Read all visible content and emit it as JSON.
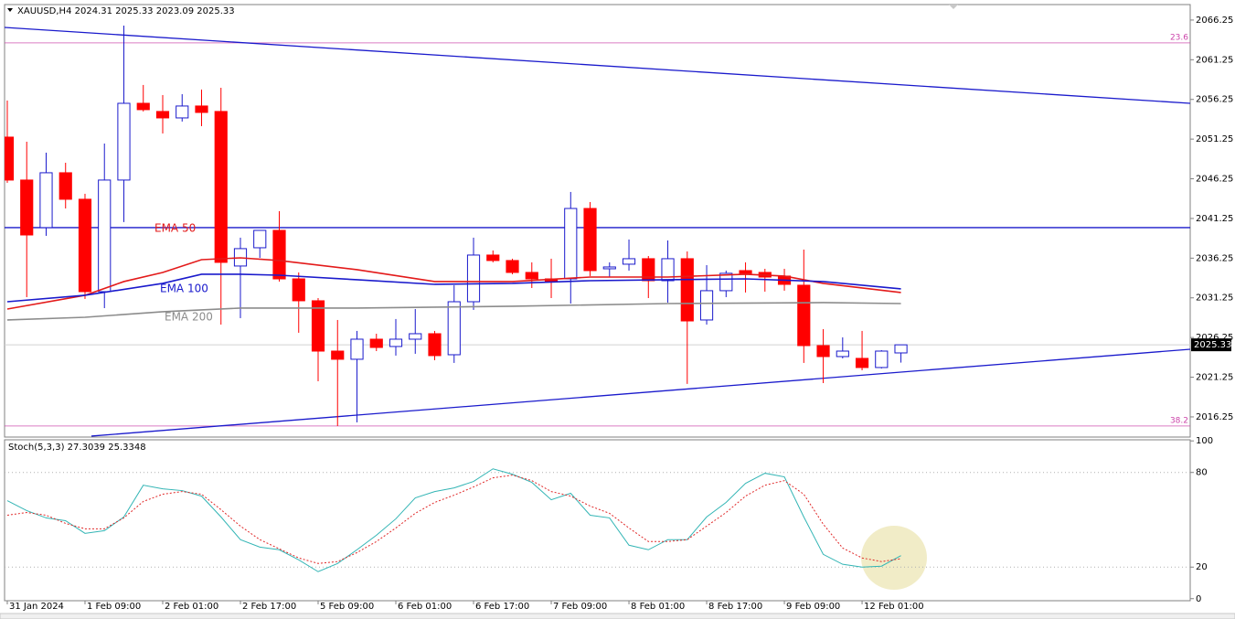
{
  "chart_data": [
    {
      "type": "candlestick",
      "title": "XAUUSD,H4",
      "open": [
        2051.5,
        2046.09,
        2040.1,
        2047.01,
        2043.67,
        2032.03,
        2046.09,
        2055.76,
        2054.73,
        2053.92,
        2055.42,
        2054.73,
        2035.26,
        2037.56,
        2039.75,
        2033.64,
        2030.88,
        2024.54,
        2023.51,
        2026.04,
        2025.12,
        2026.04,
        2026.73,
        2024.08,
        2030.76,
        2036.64,
        2035.95,
        2034.45,
        2033.64,
        2033.64,
        2042.51,
        2034.91,
        2035.49,
        2036.18,
        2033.41,
        2036.18,
        2028.46,
        2032.15,
        2034.68,
        2034.45,
        2033.99,
        2032.84,
        2025.23,
        2023.85,
        2023.62,
        2022.47,
        2024.31
      ],
      "high": [
        2056.11,
        2050.92,
        2049.54,
        2048.27,
        2044.36,
        2050.69,
        2065.55,
        2058.07,
        2056.8,
        2056.91,
        2057.49,
        2057.72,
        2038.83,
        2039.75,
        2042.17,
        2034.45,
        2031.22,
        2028.46,
        2027.08,
        2026.73,
        2028.58,
        2029.84,
        2027.08,
        2032.84,
        2038.83,
        2037.22,
        2036.18,
        2035.72,
        2036.18,
        2044.59,
        2043.32,
        2035.72,
        2038.6,
        2036.52,
        2038.48,
        2037.1,
        2035.37,
        2034.68,
        2035.72,
        2034.91,
        2034.91,
        2037.33,
        2027.31,
        2026.27,
        2027.08,
        2024.66,
        2025.33
      ],
      "low": [
        2045.74,
        2031.34,
        2039.06,
        2042.51,
        2031.11,
        2029.96,
        2040.79,
        2054.73,
        2051.96,
        2053.46,
        2052.88,
        2027.88,
        2028.69,
        2036.29,
        2033.3,
        2026.85,
        2020.74,
        2015.1,
        2015.56,
        2024.54,
        2023.97,
        2024.2,
        2023.39,
        2023.05,
        2029.73,
        2035.72,
        2034.22,
        2032.49,
        2031.22,
        2030.53,
        2033.99,
        2033.87,
        2034.68,
        2031.22,
        2030.65,
        2020.4,
        2027.88,
        2031.34,
        2031.92,
        2032.03,
        2032.15,
        2023.05,
        2020.51,
        2023.62,
        2022.12,
        2022.35,
        2023.09
      ],
      "close": [
        2046.09,
        2039.17,
        2047.01,
        2043.67,
        2032.03,
        2046.09,
        2055.76,
        2054.96,
        2053.92,
        2055.42,
        2054.61,
        2035.72,
        2037.45,
        2039.75,
        2033.64,
        2030.88,
        2024.54,
        2023.51,
        2026.04,
        2025.0,
        2026.04,
        2026.73,
        2023.97,
        2030.76,
        2036.64,
        2035.95,
        2034.45,
        2033.64,
        2033.3,
        2042.51,
        2034.68,
        2035.14,
        2036.18,
        2033.41,
        2036.18,
        2028.34,
        2032.15,
        2034.34,
        2034.34,
        2033.87,
        2032.95,
        2025.23,
        2023.85,
        2024.54,
        2022.47,
        2024.54,
        2025.33
      ],
      "up_color": "#ffffff",
      "up_edge_color": "#1a1acc",
      "down_color": "#ff0000",
      "xlim": [
        -0.14,
        60.89
      ],
      "ylim": [
        2013.71,
        2068.2
      ],
      "yticks": [
        2016.25,
        2021.25,
        2026.25,
        2031.25,
        2036.25,
        2041.25,
        2046.25,
        2051.25,
        2056.25,
        2061.25,
        2066.25
      ],
      "series": [
        {
          "name": "EMA 50",
          "color": "#e31a1a",
          "x": [
            0,
            4,
            6,
            8,
            10,
            12,
            14,
            18,
            22,
            26,
            30,
            34,
            38,
            40,
            42,
            46
          ],
          "values": [
            2029.84,
            2031.57,
            2033.3,
            2034.45,
            2036.06,
            2036.29,
            2035.95,
            2034.8,
            2033.3,
            2033.3,
            2033.87,
            2033.87,
            2034.22,
            2033.99,
            2033.07,
            2031.92
          ]
        },
        {
          "name": "EMA 100",
          "color": "#1a1acc",
          "x": [
            0,
            4,
            8,
            10,
            12,
            14,
            18,
            22,
            26,
            30,
            34,
            38,
            42,
            46
          ],
          "values": [
            2030.76,
            2031.57,
            2033.07,
            2034.22,
            2034.22,
            2034.1,
            2033.53,
            2032.95,
            2033.07,
            2033.41,
            2033.53,
            2033.64,
            2033.3,
            2032.38
          ]
        },
        {
          "name": "EMA 200",
          "color": "#8c8c8c",
          "x": [
            0,
            4,
            8,
            12,
            18,
            26,
            34,
            42,
            46
          ],
          "values": [
            2028.46,
            2028.8,
            2029.5,
            2029.96,
            2029.96,
            2030.19,
            2030.53,
            2030.65,
            2030.53
          ]
        }
      ],
      "horizontal_lines": [
        2040.1
      ],
      "line_color": "#1a1acc",
      "levels": [
        {
          "value": 2063.37,
          "label": "23.6"
        },
        {
          "value": 2015.1,
          "label": "38.2"
        }
      ],
      "level_color": "#cc44aa",
      "trendlines": [
        {
          "x": [
            -0.14,
            60.89
          ],
          "y": [
            2065.32,
            2055.76
          ]
        },
        {
          "x": [
            4.33,
            60.89
          ],
          "y": [
            2013.83,
            2024.77
          ]
        }
      ]
    },
    {
      "type": "line",
      "title": "Stoch(5,3,3)",
      "categories": [
        "31 Jan 2024",
        null,
        null,
        null,
        "1 Feb 09:00",
        null,
        null,
        null,
        "2 Feb 01:00",
        null,
        null,
        null,
        "2 Feb 17:00",
        null,
        null,
        null,
        "5 Feb 09:00",
        null,
        null,
        null,
        "6 Feb 01:00",
        null,
        null,
        null,
        "6 Feb 17:00",
        null,
        null,
        null,
        "7 Feb 09:00",
        null,
        null,
        null,
        "8 Feb 01:00",
        null,
        null,
        null,
        "8 Feb 17:00",
        null,
        null,
        null,
        "9 Feb 09:00",
        null,
        null,
        null,
        "12 Feb 01:00",
        null,
        null
      ],
      "series": [
        {
          "color": "#33b5b5",
          "style": "solid",
          "values": [
            62.1,
            55.8,
            51.2,
            49.4,
            41.4,
            43.1,
            51.8,
            71.9,
            69.6,
            68.5,
            65.0,
            51.8,
            37.4,
            32.7,
            31.0,
            24.6,
            17.1,
            22.3,
            31.0,
            40.2,
            50.6,
            63.9,
            67.9,
            70.2,
            74.3,
            82.3,
            78.9,
            73.7,
            62.7,
            66.8,
            52.9,
            51.2,
            33.9,
            31.0,
            37.4,
            37.4,
            51.8,
            61.0,
            73.1,
            79.5,
            77.2,
            51.8,
            28.1,
            21.8,
            20.0,
            20.6,
            27.3039
          ]
        },
        {
          "color": "#e02828",
          "style": "dotted",
          "values": [
            52.9,
            54.6,
            52.9,
            47.7,
            44.3,
            44.3,
            51.2,
            61.6,
            66.2,
            67.9,
            66.2,
            56.4,
            46.0,
            37.4,
            31.6,
            25.8,
            22.3,
            23.5,
            29.2,
            36.2,
            44.8,
            54.1,
            61.0,
            65.6,
            70.8,
            76.6,
            78.3,
            74.8,
            67.9,
            65.0,
            58.7,
            54.1,
            44.8,
            36.2,
            36.2,
            37.4,
            46.0,
            54.6,
            65.0,
            71.9,
            74.8,
            66.2,
            47.2,
            32.1,
            25.8,
            23.5,
            25.3348
          ]
        }
      ],
      "xlim": [
        -0.14,
        60.89
      ],
      "ylim": [
        -1.3,
        100.7
      ],
      "yticks": [
        0,
        20,
        80,
        100
      ],
      "levels": [
        20,
        80
      ]
    }
  ]
}
